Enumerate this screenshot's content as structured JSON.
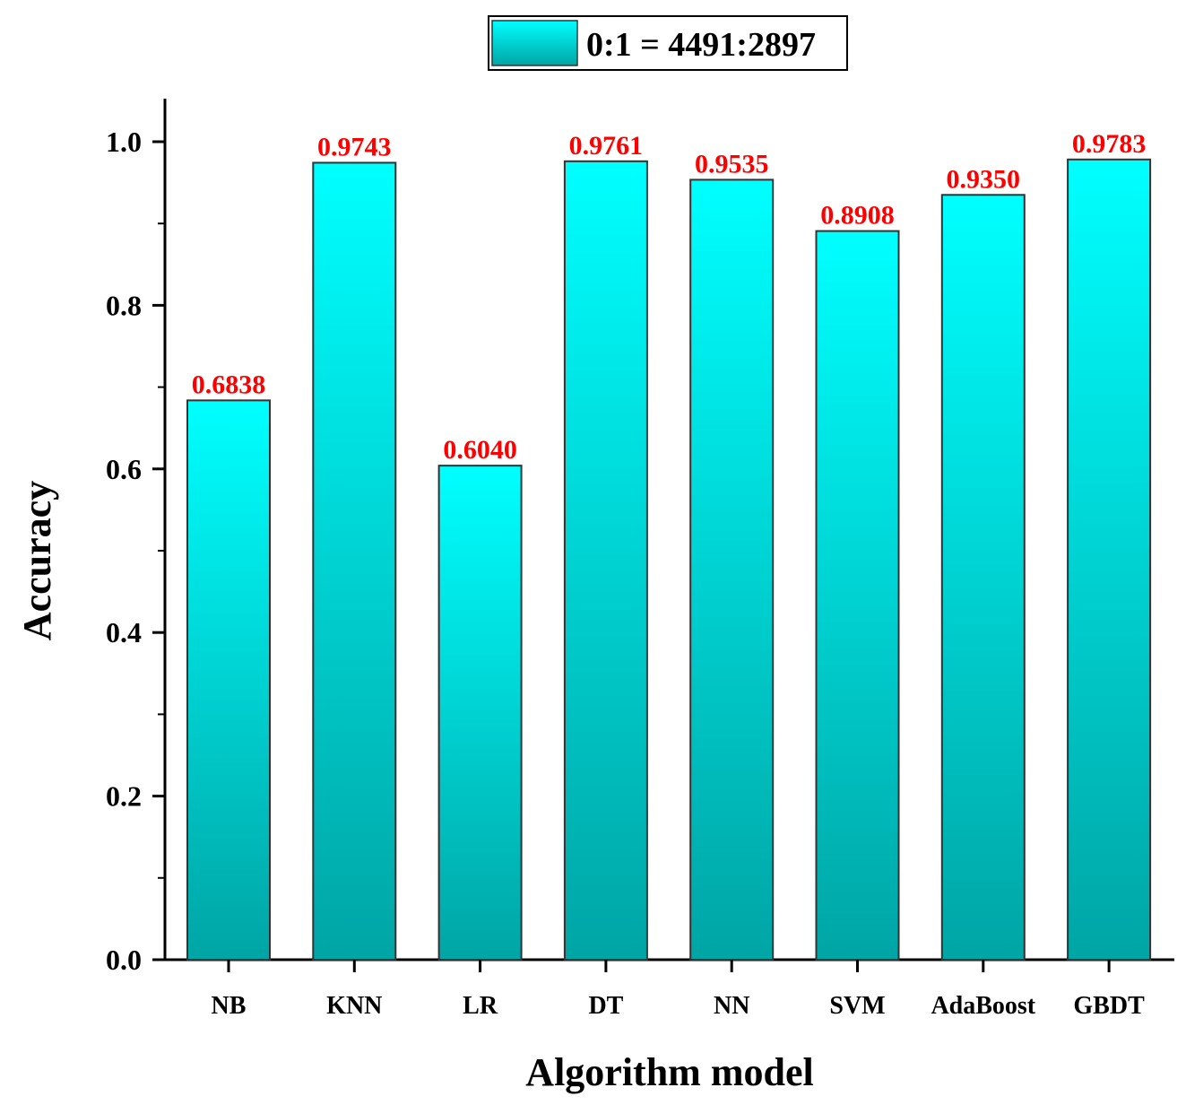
{
  "chart_data": {
    "type": "bar",
    "categories": [
      "NB",
      "KNN",
      "LR",
      "DT",
      "NN",
      "SVM",
      "AdaBoost",
      "GBDT"
    ],
    "values": [
      0.6838,
      0.9743,
      0.604,
      0.9761,
      0.9535,
      0.8908,
      0.935,
      0.9783
    ],
    "data_labels": [
      "0.6838",
      "0.9743",
      "0.6040",
      "0.9761",
      "0.9535",
      "0.8908",
      "0.9350",
      "0.9783"
    ],
    "series_name": "0:1 = 4491:2897",
    "xlabel": "Algorithm model",
    "ylabel": "Accuracy",
    "ylim": [
      0,
      1.05
    ],
    "yticks": [
      0.0,
      0.2,
      0.4,
      0.6,
      0.8,
      1.0
    ],
    "ytick_labels": [
      "0.0",
      "0.2",
      "0.4",
      "0.6",
      "0.8",
      "1.0"
    ],
    "legend_position": "top-center",
    "grid": false,
    "colors": {
      "bar_top": "#00ffff",
      "bar_bottom": "#00a5a5",
      "bar_edge": "#333333",
      "data_label": "#ff0000",
      "axis": "#000000"
    }
  }
}
